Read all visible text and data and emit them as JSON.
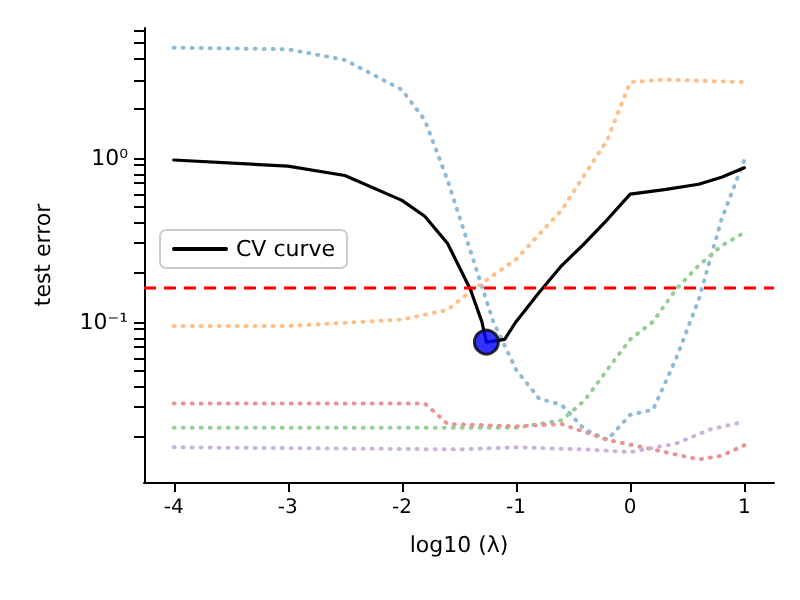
{
  "chart_data": {
    "type": "line",
    "xlabel": "log10 (λ)",
    "ylabel": "test error",
    "log": "y",
    "grid": false,
    "legend": "left",
    "marker": "none",
    "xlim": [
      -4.26,
      1.26
    ],
    "xticks": [
      -4,
      -3,
      -2,
      -1,
      0,
      1
    ],
    "ylim": [
      0.0105,
      6.2
    ],
    "yticks": [
      {
        "value": 0.1,
        "label": "10⁻¹"
      },
      {
        "value": 1,
        "label": "10⁰"
      },
      {
        "value": 0.02,
        "label": null
      },
      {
        "value": 0.03,
        "label": null
      },
      {
        "value": 0.04,
        "label": null
      },
      {
        "value": 0.05,
        "label": null
      },
      {
        "value": 0.06,
        "label": null
      },
      {
        "value": 0.07,
        "label": null
      },
      {
        "value": 0.08,
        "label": null
      },
      {
        "value": 0.09,
        "label": null
      },
      {
        "value": 0.2,
        "label": null
      },
      {
        "value": 0.3,
        "label": null
      },
      {
        "value": 0.4,
        "label": null
      },
      {
        "value": 0.5,
        "label": null
      },
      {
        "value": 0.6,
        "label": null
      },
      {
        "value": 0.7,
        "label": null
      },
      {
        "value": 0.8,
        "label": null
      },
      {
        "value": 0.9,
        "label": null
      },
      {
        "value": 2,
        "label": null
      },
      {
        "value": 3,
        "label": null
      },
      {
        "value": 4,
        "label": null
      },
      {
        "value": 5,
        "label": null
      },
      {
        "value": 6,
        "label": null
      }
    ],
    "ref_lines": [
      {
        "axis": "y",
        "value": 0.161,
        "color": "#ff0000",
        "line_style": "dashed"
      }
    ],
    "series": [
      {
        "color": "#8fbbd9",
        "line_style": "dotted",
        "x": [
          -4,
          -3,
          -2.5,
          -2,
          -1.8,
          -1.6,
          -1.4,
          -1.2,
          -1,
          -0.8,
          -0.6,
          -0.4,
          -0.2,
          0,
          0.2,
          0.4,
          0.6,
          0.8,
          1
        ],
        "values": [
          4.7,
          4.6,
          3.96,
          2.6,
          1.7,
          0.73,
          0.27,
          0.1,
          0.051,
          0.034,
          0.031,
          0.022,
          0.019,
          0.027,
          0.029,
          0.059,
          0.136,
          0.42,
          0.97
        ]
      },
      {
        "color": "#ffbf86",
        "line_style": "dotted",
        "x": [
          -4,
          -3,
          -2,
          -1.6,
          -1.4,
          -1,
          -0.6,
          -0.2,
          0,
          0.3,
          1
        ],
        "values": [
          0.094,
          0.094,
          0.103,
          0.118,
          0.153,
          0.24,
          0.48,
          1.29,
          2.9,
          3.0,
          2.9
        ]
      },
      {
        "color": "#95cf95",
        "line_style": "dotted",
        "x": [
          -4,
          -1,
          -0.6,
          -0.4,
          -0.2,
          0,
          0.2,
          0.4,
          0.6,
          0.8,
          1
        ],
        "values": [
          0.0225,
          0.0225,
          0.025,
          0.033,
          0.051,
          0.078,
          0.1,
          0.157,
          0.22,
          0.29,
          0.35
        ]
      },
      {
        "color": "#ea9393",
        "line_style": "dotted",
        "x": [
          -4,
          -1.8,
          -1.7,
          -1.6,
          -1,
          -0.6,
          -0.2,
          0.2,
          0.6,
          0.8,
          1
        ],
        "values": [
          0.0316,
          0.0316,
          0.0275,
          0.0237,
          0.023,
          0.0237,
          0.019,
          0.0166,
          0.0144,
          0.0152,
          0.0176
        ]
      },
      {
        "color": "#c9b3de",
        "line_style": "dotted",
        "x": [
          -4,
          -1.5,
          -1,
          -0.4,
          0,
          0.4,
          0.7,
          1
        ],
        "values": [
          0.0171,
          0.0166,
          0.0171,
          0.0166,
          0.016,
          0.018,
          0.022,
          0.0245
        ]
      },
      {
        "name": "CV curve",
        "color": "#000000",
        "line_style": "solid",
        "x": [
          -4,
          -3,
          -2.5,
          -2,
          -1.8,
          -1.6,
          -1.4,
          -1.3,
          -1.26,
          -1.1,
          -1,
          -0.8,
          -0.6,
          -0.4,
          -0.2,
          0,
          0.3,
          0.6,
          0.8,
          1
        ],
        "values": [
          0.97,
          0.89,
          0.78,
          0.55,
          0.44,
          0.3,
          0.157,
          0.1,
          0.075,
          0.078,
          0.1,
          0.15,
          0.22,
          0.3,
          0.42,
          0.6,
          0.64,
          0.69,
          0.76,
          0.87
        ]
      },
      {
        "type": "scatter",
        "marker": "circle",
        "color": "#0000ff",
        "x": [
          -1.26
        ],
        "values": [
          0.075
        ]
      }
    ]
  }
}
